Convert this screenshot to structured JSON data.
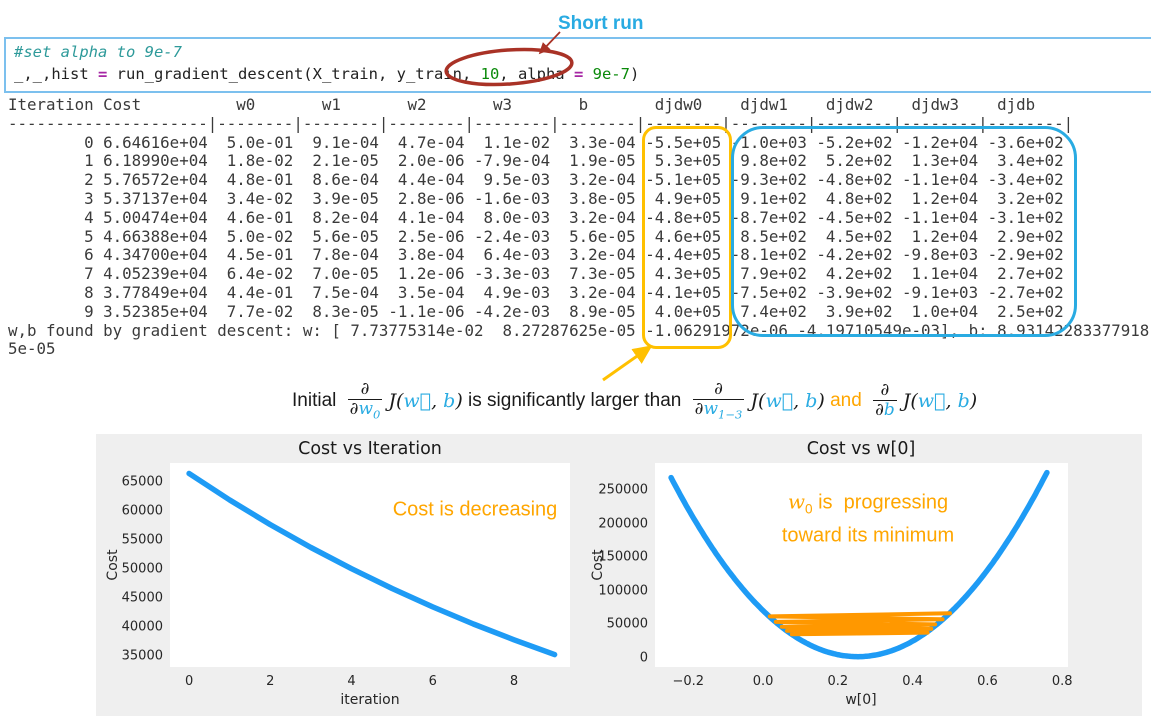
{
  "colors": {
    "accent_blue": "#29ABE2",
    "box_orange": "#FFC000",
    "dark_red": "#A93226",
    "chart_blue": "#1E9BF5",
    "chart_orange": "#FF9800",
    "note_orange": "#FFA600"
  },
  "annotations": {
    "short_run": "Short run"
  },
  "code_cell": {
    "lines": [
      [
        {
          "t": "#set alpha to 9e-7",
          "c": "com"
        }
      ],
      [
        {
          "t": "_,_,hist ",
          "c": "pl"
        },
        {
          "t": "=",
          "c": "op"
        },
        {
          "t": " run_gradient_descent(X_train, y_train, ",
          "c": "pl"
        },
        {
          "t": "10",
          "c": "num"
        },
        {
          "t": ", alpha ",
          "c": "pl"
        },
        {
          "t": "=",
          "c": "op"
        },
        {
          "t": " ",
          "c": "pl"
        },
        {
          "t": "9e-7",
          "c": "num"
        },
        {
          "t": ")",
          "c": "pl"
        }
      ]
    ]
  },
  "table": {
    "header_line": "Iteration Cost          w0       w1       w2       w3       b       djdw0    djdw1    djdw2    djdw3    djdb  ",
    "separator_line": "---------------------|--------|--------|--------|--------|--------|--------|--------|--------|--------|--------|",
    "columns": [
      "Iteration",
      "Cost",
      "w0",
      "w1",
      "w2",
      "w3",
      "b",
      "djdw0",
      "djdw1",
      "djdw2",
      "djdw3",
      "djdb"
    ],
    "rows": [
      {
        "iteration": "0",
        "cost": "6.64616e+04",
        "values": [
          "5.0e-01",
          "9.1e-04",
          "4.7e-04",
          "1.1e-02",
          "3.3e-04",
          "-5.5e+05",
          "-1.0e+03",
          "-5.2e+02",
          "-1.2e+04",
          "-3.6e+02"
        ]
      },
      {
        "iteration": "1",
        "cost": "6.18990e+04",
        "values": [
          "1.8e-02",
          "2.1e-05",
          "2.0e-06",
          "-7.9e-04",
          "1.9e-05",
          "5.3e+05",
          "9.8e+02",
          "5.2e+02",
          "1.3e+04",
          "3.4e+02"
        ]
      },
      {
        "iteration": "2",
        "cost": "5.76572e+04",
        "values": [
          "4.8e-01",
          "8.6e-04",
          "4.4e-04",
          "9.5e-03",
          "3.2e-04",
          "-5.1e+05",
          "-9.3e+02",
          "-4.8e+02",
          "-1.1e+04",
          "-3.4e+02"
        ]
      },
      {
        "iteration": "3",
        "cost": "5.37137e+04",
        "values": [
          "3.4e-02",
          "3.9e-05",
          "2.8e-06",
          "-1.6e-03",
          "3.8e-05",
          "4.9e+05",
          "9.1e+02",
          "4.8e+02",
          "1.2e+04",
          "3.2e+02"
        ]
      },
      {
        "iteration": "4",
        "cost": "5.00474e+04",
        "values": [
          "4.6e-01",
          "8.2e-04",
          "4.1e-04",
          "8.0e-03",
          "3.2e-04",
          "-4.8e+05",
          "-8.7e+02",
          "-4.5e+02",
          "-1.1e+04",
          "-3.1e+02"
        ]
      },
      {
        "iteration": "5",
        "cost": "4.66388e+04",
        "values": [
          "5.0e-02",
          "5.6e-05",
          "2.5e-06",
          "-2.4e-03",
          "5.6e-05",
          "4.6e+05",
          "8.5e+02",
          "4.5e+02",
          "1.2e+04",
          "2.9e+02"
        ]
      },
      {
        "iteration": "6",
        "cost": "4.34700e+04",
        "values": [
          "4.5e-01",
          "7.8e-04",
          "3.8e-04",
          "6.4e-03",
          "3.2e-04",
          "-4.4e+05",
          "-8.1e+02",
          "-4.2e+02",
          "-9.8e+03",
          "-2.9e+02"
        ]
      },
      {
        "iteration": "7",
        "cost": "4.05239e+04",
        "values": [
          "6.4e-02",
          "7.0e-05",
          "1.2e-06",
          "-3.3e-03",
          "7.3e-05",
          "4.3e+05",
          "7.9e+02",
          "4.2e+02",
          "1.1e+04",
          "2.7e+02"
        ]
      },
      {
        "iteration": "8",
        "cost": "3.77849e+04",
        "values": [
          "4.4e-01",
          "7.5e-04",
          "3.5e-04",
          "4.9e-03",
          "3.2e-04",
          "-4.1e+05",
          "-7.5e+02",
          "-3.9e+02",
          "-9.1e+03",
          "-2.7e+02"
        ]
      },
      {
        "iteration": "9",
        "cost": "3.52385e+04",
        "values": [
          "7.7e-02",
          "8.3e-05",
          "-1.1e-06",
          "-4.2e-03",
          "8.9e-05",
          "4.0e+05",
          "7.4e+02",
          "3.9e+02",
          "1.0e+04",
          "2.5e+02"
        ]
      }
    ]
  },
  "output_summary": {
    "line1": "w,b found by gradient descent: w: [ 7.73775314e-02  8.27287625e-05 -1.06291972e-06 -4.19710549e-03], b: 8.93142283377918",
    "line2": "5e-05"
  },
  "math": {
    "initial": "Initial ",
    "partial": "∂",
    "w": "w",
    "sub0": "0",
    "sub13": "1−3",
    "J": "J",
    "open": "(",
    "wvec": "w⃗",
    "comma": ", ",
    "b": "b",
    "close": ")",
    "larger": " is significantly larger than ",
    "and": " and "
  },
  "chart_data": [
    {
      "type": "line",
      "title": "Cost vs Iteration",
      "xlabel": "iteration",
      "ylabel": "Cost",
      "x": [
        0,
        1,
        2,
        3,
        4,
        5,
        6,
        7,
        8,
        9
      ],
      "y": [
        66461.6,
        61899.0,
        57657.2,
        53713.7,
        50047.4,
        46638.8,
        43470.0,
        40523.9,
        37784.9,
        35238.5
      ],
      "color": "chart_blue",
      "xlim": [
        -0.47,
        9.38
      ],
      "ylim": [
        33100,
        68280
      ],
      "xticks": [
        {
          "v": 0,
          "l": "0"
        },
        {
          "v": 2,
          "l": "2"
        },
        {
          "v": 4,
          "l": "4"
        },
        {
          "v": 6,
          "l": "6"
        },
        {
          "v": 8,
          "l": "8"
        }
      ],
      "yticks": [
        {
          "v": 35000,
          "l": "35000"
        },
        {
          "v": 40000,
          "l": "40000"
        },
        {
          "v": 45000,
          "l": "45000"
        },
        {
          "v": 50000,
          "l": "50000"
        },
        {
          "v": 55000,
          "l": "55000"
        },
        {
          "v": 60000,
          "l": "60000"
        },
        {
          "v": 65000,
          "l": "65000"
        }
      ],
      "grid": false,
      "annotation": {
        "text": "Cost is decreasing",
        "color": "note_orange"
      }
    },
    {
      "type": "line",
      "title": "Cost vs w[0]",
      "xlabel": "w[0]",
      "ylabel": "Cost",
      "series": [
        {
          "name": "cost-curve",
          "color": "chart_blue",
          "parabola": {
            "a": 1070000,
            "w_min": 0.253,
            "c_min": 2000,
            "domain": [
              -0.246,
              0.762
            ]
          }
        },
        {
          "name": "gradient-descent-path",
          "color": "chart_orange",
          "points": [
            [
              0.5,
              66461.6
            ],
            [
              0.018,
              61899.0
            ],
            [
              0.48,
              57657.2
            ],
            [
              0.034,
              53713.7
            ],
            [
              0.46,
              50047.4
            ],
            [
              0.05,
              46638.8
            ],
            [
              0.45,
              43470.0
            ],
            [
              0.064,
              40523.9
            ],
            [
              0.44,
              37784.9
            ],
            [
              0.077,
              35238.5
            ]
          ]
        }
      ],
      "xlim": [
        -0.289,
        0.8155
      ],
      "ylim": [
        -13400,
        290200
      ],
      "xticks": [
        {
          "v": -0.2,
          "l": "−0.2"
        },
        {
          "v": 0.0,
          "l": "0.0"
        },
        {
          "v": 0.2,
          "l": "0.2"
        },
        {
          "v": 0.4,
          "l": "0.4"
        },
        {
          "v": 0.6,
          "l": "0.6"
        },
        {
          "v": 0.8,
          "l": "0.8"
        }
      ],
      "yticks": [
        {
          "v": 0,
          "l": "0"
        },
        {
          "v": 50000,
          "l": "50000"
        },
        {
          "v": 100000,
          "l": "100000"
        },
        {
          "v": 150000,
          "l": "150000"
        },
        {
          "v": 200000,
          "l": "200000"
        },
        {
          "v": 250000,
          "l": "250000"
        }
      ],
      "grid": false,
      "annotation": {
        "w": "w",
        "w_sub": "0",
        "line1_rest": " is  progressing",
        "line2": "toward its minimum",
        "color": "note_orange"
      }
    }
  ]
}
